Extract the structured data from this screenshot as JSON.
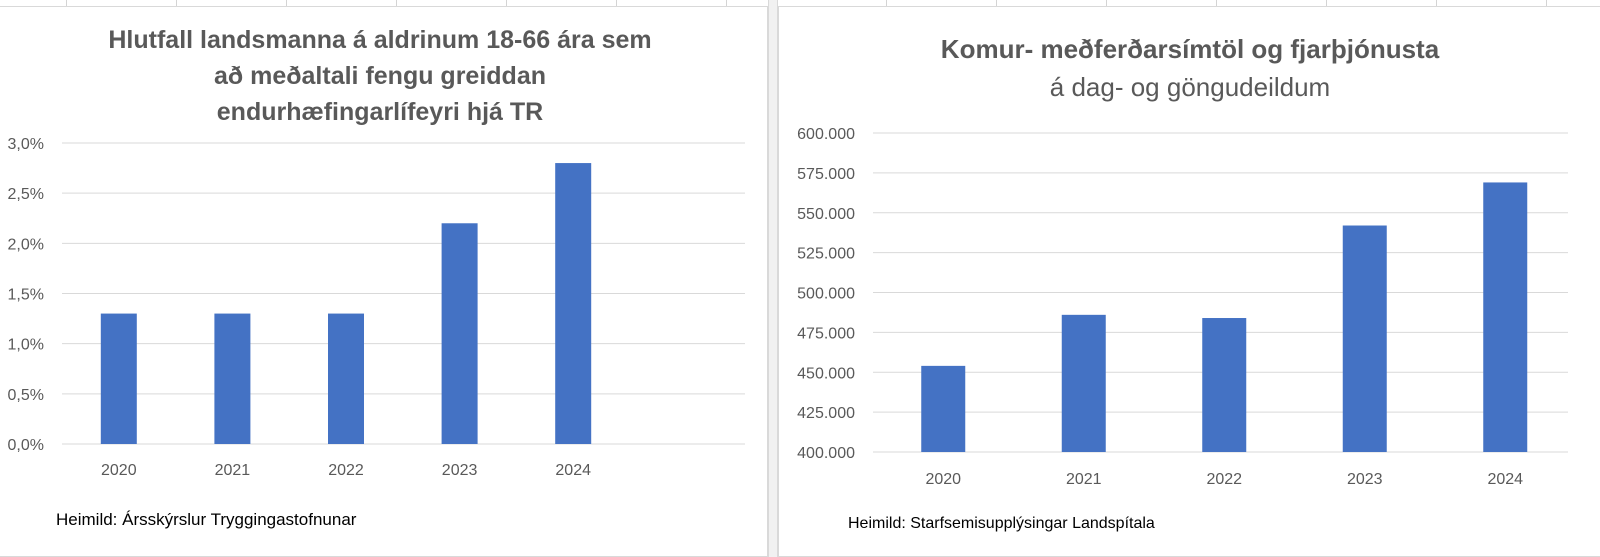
{
  "charts": [
    {
      "title_lines": [
        "Hlutfall landsmanna á aldrinum 18-66 ára sem",
        "að meðaltali fengu greiddan",
        "endurhæfingarlífeyri hjá TR"
      ],
      "source": "Heimild: Ársskýrslur Tryggingastofnunar"
    },
    {
      "title_bold": "Komur- meðferðarsímtöl og fjarþjónusta",
      "title_regular": "á dag- og göngudeildum",
      "source": "Heimild: Starfsemisupplýsingar Landspítala"
    }
  ],
  "chart_data": [
    {
      "type": "bar",
      "title": "Hlutfall landsmanna á aldrinum 18-66 ára sem að meðaltali fengu greiddan endurhæfingarlífeyri hjá TR",
      "categories": [
        "2020",
        "2021",
        "2022",
        "2023",
        "2024"
      ],
      "values": [
        1.3,
        1.3,
        1.3,
        2.2,
        2.8
      ],
      "y_ticks": [
        0,
        0.5,
        1.0,
        1.5,
        2.0,
        2.5,
        3.0
      ],
      "y_tick_labels": [
        "0,0%",
        "0,5%",
        "1,0%",
        "1,5%",
        "2,0%",
        "2,5%",
        "3,0%"
      ],
      "ylim": [
        0,
        3.0
      ],
      "xlabel": "",
      "ylabel": "",
      "grid": true,
      "bar_color": "#4472c4"
    },
    {
      "type": "bar",
      "title": "Komur- meðferðarsímtöl og fjarþjónusta á dag- og göngudeildum",
      "categories": [
        "2020",
        "2021",
        "2022",
        "2023",
        "2024"
      ],
      "values": [
        454000,
        486000,
        484000,
        542000,
        569000
      ],
      "y_ticks": [
        400000,
        425000,
        450000,
        475000,
        500000,
        525000,
        550000,
        575000,
        600000
      ],
      "y_tick_labels": [
        "400.000",
        "425.000",
        "450.000",
        "475.000",
        "500.000",
        "525.000",
        "550.000",
        "575.000",
        "600.000"
      ],
      "ylim": [
        400000,
        600000
      ],
      "xlabel": "",
      "ylabel": "",
      "grid": true,
      "bar_color": "#4472c4"
    }
  ]
}
